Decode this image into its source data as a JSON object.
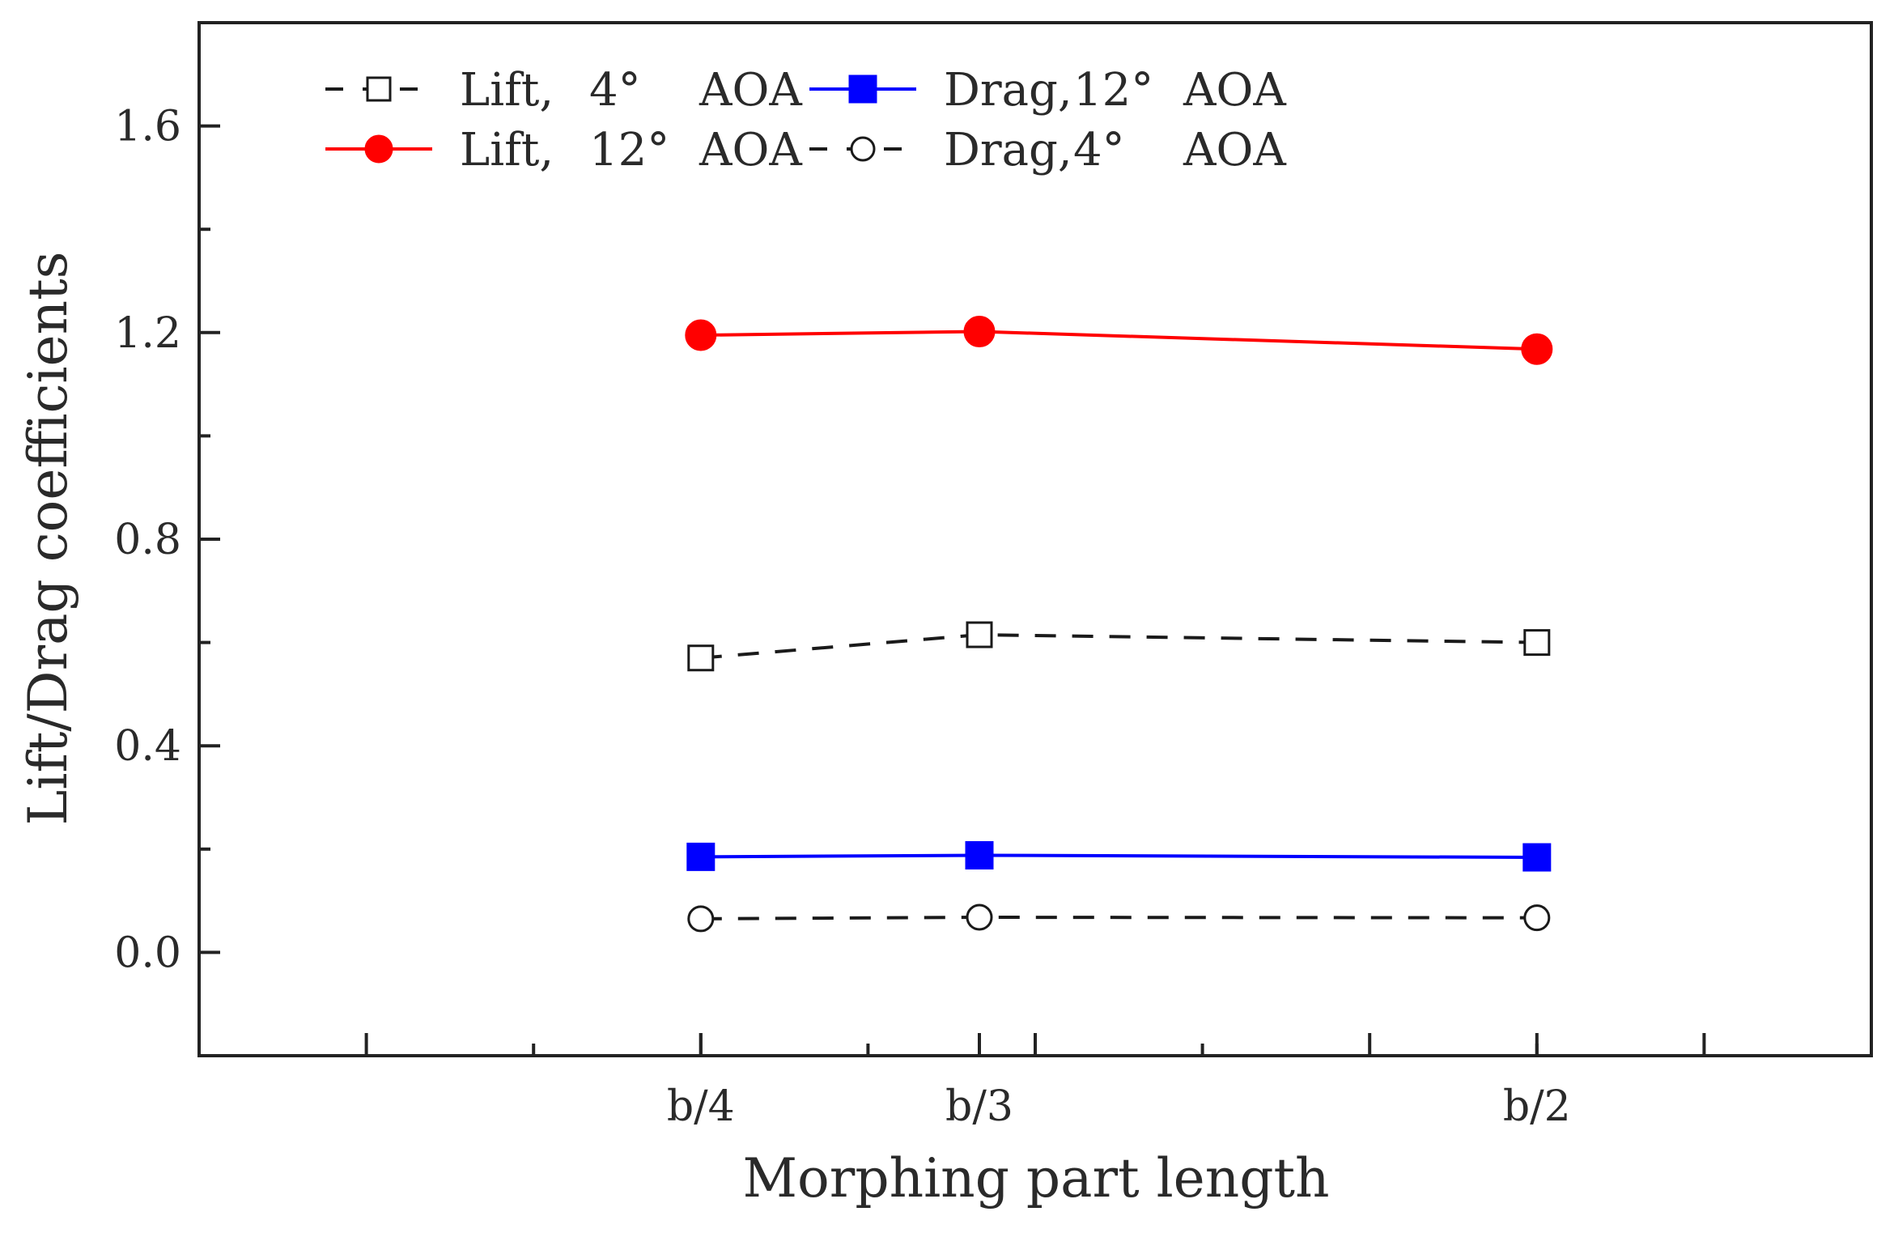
{
  "chart_data": {
    "type": "line",
    "title": "",
    "xlabel": "Morphing part length",
    "ylabel": "Lift/Drag coefficients",
    "categories": [
      "b/4",
      "b/3",
      "b/2"
    ],
    "x": [
      0.25,
      0.3333,
      0.5
    ],
    "xlim": [
      0.1,
      0.6
    ],
    "xticks": [
      0.25,
      0.3333,
      0.5
    ],
    "ylim": [
      -0.2,
      1.8
    ],
    "yticks": [
      0.0,
      0.4,
      0.8,
      1.2,
      1.6
    ],
    "ytick_labels": [
      "0.0",
      "0.4",
      "0.8",
      "1.2",
      "1.6"
    ],
    "grid": false,
    "legend_position": "top-left",
    "series": [
      {
        "name": "Lift, 4° AOA",
        "label_main": "Lift,",
        "label_angle": "4°",
        "label_aoa": "AOA",
        "values": [
          0.57,
          0.615,
          0.6
        ],
        "color": "#1a1a1a",
        "line": "dashed",
        "marker": "square",
        "filled": false
      },
      {
        "name": "Drag, 12° AOA",
        "label_main": "Drag,",
        "label_angle": "12°",
        "label_aoa": "AOA",
        "values": [
          0.185,
          0.188,
          0.184
        ],
        "color": "#0000ff",
        "line": "solid",
        "marker": "square",
        "filled": true
      },
      {
        "name": "Lift, 12° AOA",
        "label_main": "Lift,",
        "label_angle": "12°",
        "label_aoa": "AOA",
        "values": [
          1.195,
          1.202,
          1.168
        ],
        "color": "#ff0000",
        "line": "solid",
        "marker": "circle",
        "filled": true
      },
      {
        "name": "Drag, 4° AOA",
        "label_main": "Drag,",
        "label_angle": "4°",
        "label_aoa": "AOA",
        "values": [
          0.065,
          0.068,
          0.067
        ],
        "color": "#1a1a1a",
        "line": "dashed",
        "marker": "circle",
        "filled": false
      }
    ]
  }
}
